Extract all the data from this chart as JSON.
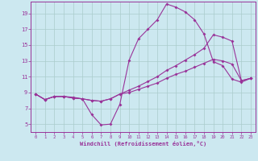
{
  "xlabel": "Windchill (Refroidissement éolien,°C)",
  "bg_color": "#cce8f0",
  "line_color": "#993399",
  "grid_color": "#aacccc",
  "xlim": [
    -0.5,
    23.5
  ],
  "ylim": [
    4.0,
    20.5
  ],
  "yticks": [
    5,
    7,
    9,
    11,
    13,
    15,
    17,
    19
  ],
  "xticks": [
    0,
    1,
    2,
    3,
    4,
    5,
    6,
    7,
    8,
    9,
    10,
    11,
    12,
    13,
    14,
    15,
    16,
    17,
    18,
    19,
    20,
    21,
    22,
    23
  ],
  "curve1_x": [
    0,
    1,
    2,
    3,
    4,
    5,
    6,
    7,
    8,
    9,
    10,
    11,
    12,
    13,
    14,
    15,
    16,
    17,
    18,
    19,
    20,
    21,
    22,
    23
  ],
  "curve1_y": [
    8.8,
    8.1,
    8.5,
    8.5,
    8.4,
    8.2,
    6.2,
    4.9,
    5.0,
    7.5,
    13.1,
    15.8,
    17.0,
    18.2,
    20.2,
    19.8,
    19.2,
    18.2,
    16.4,
    12.9,
    12.4,
    10.7,
    10.3,
    10.8
  ],
  "curve2_x": [
    0,
    1,
    2,
    3,
    4,
    5,
    6,
    7,
    8,
    9,
    10,
    11,
    12,
    13,
    14,
    15,
    16,
    17,
    18,
    19,
    20,
    21,
    22,
    23
  ],
  "curve2_y": [
    8.8,
    8.1,
    8.5,
    8.5,
    8.3,
    8.2,
    8.0,
    7.9,
    8.2,
    8.8,
    9.3,
    9.8,
    10.4,
    11.0,
    11.8,
    12.4,
    13.1,
    13.8,
    14.6,
    16.3,
    16.0,
    15.5,
    10.5,
    10.8
  ],
  "curve3_x": [
    0,
    1,
    2,
    3,
    4,
    5,
    6,
    7,
    8,
    9,
    10,
    11,
    12,
    13,
    14,
    15,
    16,
    17,
    18,
    19,
    20,
    21,
    22,
    23
  ],
  "curve3_y": [
    8.8,
    8.1,
    8.5,
    8.5,
    8.3,
    8.2,
    8.0,
    7.9,
    8.2,
    8.8,
    9.0,
    9.4,
    9.8,
    10.2,
    10.8,
    11.3,
    11.7,
    12.2,
    12.7,
    13.2,
    13.0,
    12.6,
    10.5,
    10.8
  ]
}
